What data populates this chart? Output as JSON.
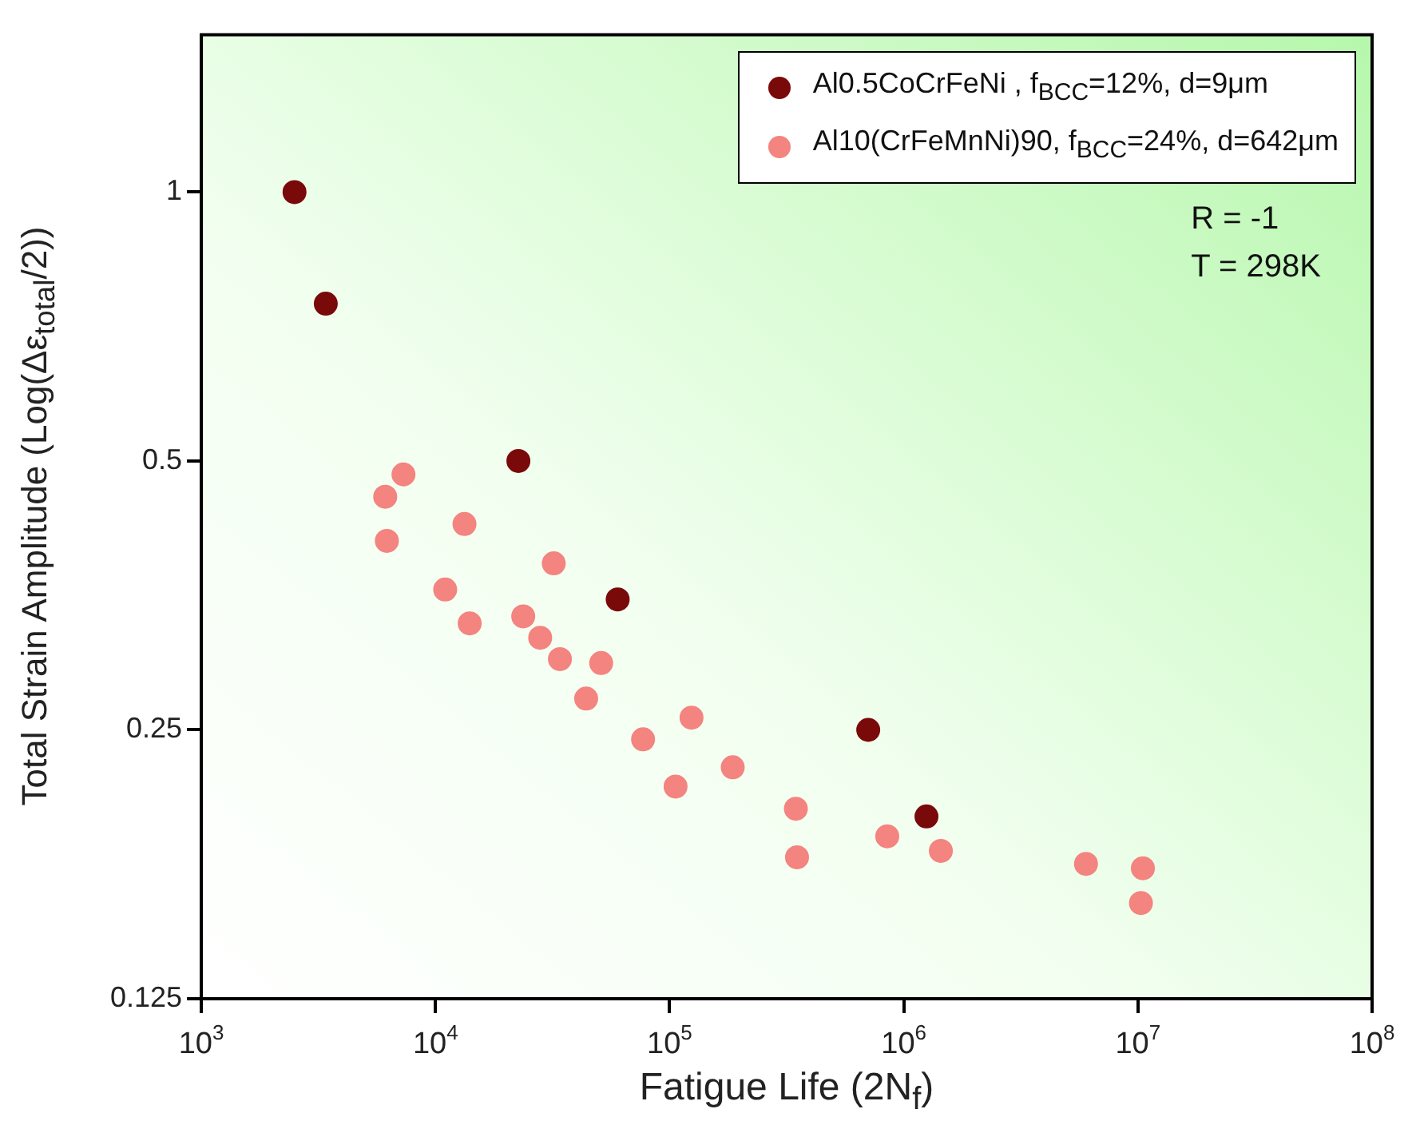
{
  "chart_data": {
    "type": "scatter",
    "xlabel": "Fatigue Life (2N$_{f}$)",
    "ylabel": "Total Strain Amplitude (Log(Δε$_{total}$/2))",
    "log": "xy",
    "grid": false,
    "legend": "top right",
    "marker": "circle",
    "xlim": [
      1000,
      100000000
    ],
    "xticks": [
      {
        "value": 1000,
        "label": "10$^{3}$"
      },
      {
        "value": 10000,
        "label": "10$^{4}$"
      },
      {
        "value": 100000,
        "label": "10$^{5}$"
      },
      {
        "value": 1000000,
        "label": "10$^{6}$"
      },
      {
        "value": 10000000,
        "label": "10$^{7}$"
      },
      {
        "value": 100000000,
        "label": "10$^{8}$"
      }
    ],
    "ylim": [
      0.125,
      1.5
    ],
    "yticks": [
      0.125,
      0.25,
      0.5,
      1
    ],
    "annotations": [
      "R = -1",
      "T = 298K"
    ],
    "series": [
      {
        "name": "Al0.5CoCrFeNi , f$_{BCC}$=12%, d=9μm",
        "color": "#7a0a0a",
        "x": [
          2500,
          3400,
          22600,
          60000,
          705000,
          1250000
        ],
        "values": [
          1,
          0.75,
          0.5,
          0.35,
          0.25,
          0.2
        ]
      },
      {
        "name": "Al10(CrFeMnNi)90, f$_{BCC}$=24%, d=642μm",
        "color": "#f4847f",
        "x": [
          6100,
          7300,
          6200,
          13300,
          11000,
          14000,
          32000,
          23700,
          28000,
          34000,
          44000,
          51000,
          77000,
          124000,
          106000,
          186000,
          346000,
          350000,
          850000,
          1440000,
          6000000,
          10500000,
          10300000
        ],
        "values": [
          0.456,
          0.483,
          0.407,
          0.425,
          0.359,
          0.329,
          0.384,
          0.335,
          0.317,
          0.3,
          0.271,
          0.297,
          0.244,
          0.258,
          0.216,
          0.227,
          0.204,
          0.18,
          0.19,
          0.183,
          0.177,
          0.175,
          0.16
        ]
      }
    ]
  }
}
